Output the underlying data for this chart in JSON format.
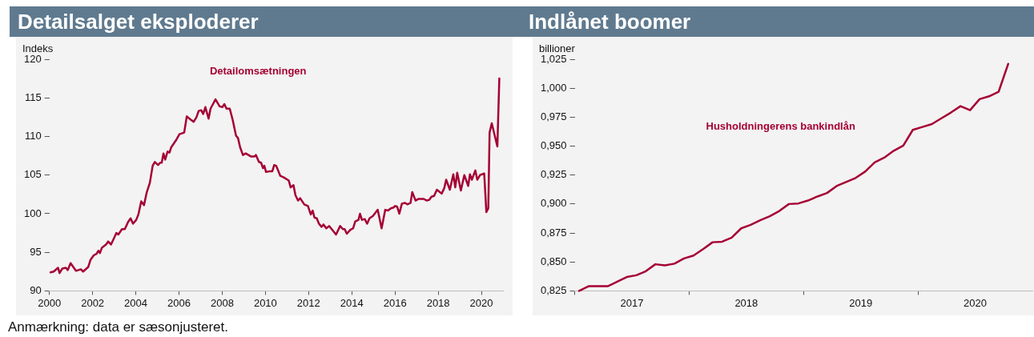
{
  "chart_data": [
    {
      "type": "line",
      "title": "Detailsalget eksploderer",
      "ylabel": "Indeks",
      "xlim": [
        2000,
        2021
      ],
      "xticks": [
        2000,
        2002,
        2004,
        2006,
        2008,
        2010,
        2012,
        2014,
        2016,
        2018,
        2020
      ],
      "ylim": [
        90,
        120
      ],
      "yticks": [
        90,
        95,
        100,
        105,
        110,
        115,
        120
      ],
      "grid": false,
      "legend": false,
      "marker": "none",
      "line_style": "solid",
      "annotations": [
        "Anmærkning: data er sæsonjusteret."
      ],
      "series": [
        {
          "name": "Detailomsætningen",
          "color": "#a50034",
          "x": [
            2000.05,
            2000.2,
            2000.4,
            2000.47,
            2000.6,
            2000.76,
            2000.85,
            2000.98,
            2001.23,
            2001.46,
            2001.56,
            2001.8,
            2001.9,
            2002.05,
            2002.18,
            2002.27,
            2002.34,
            2002.43,
            2002.62,
            2002.72,
            2002.85,
            2002.97,
            2003.1,
            2003.19,
            2003.36,
            2003.49,
            2003.64,
            2003.76,
            2003.87,
            2004.02,
            2004.12,
            2004.25,
            2004.38,
            2004.5,
            2004.65,
            2004.78,
            2004.88,
            2005.03,
            2005.13,
            2005.2,
            2005.28,
            2005.36,
            2005.47,
            2005.56,
            2005.64,
            2005.86,
            2006.02,
            2006.24,
            2006.36,
            2006.53,
            2006.68,
            2006.81,
            2006.91,
            2007.03,
            2007.12,
            2007.22,
            2007.37,
            2007.46,
            2007.69,
            2007.88,
            2008.01,
            2008.1,
            2008.2,
            2008.35,
            2008.49,
            2008.64,
            2008.73,
            2008.83,
            2008.96,
            2009.09,
            2009.34,
            2009.49,
            2009.56,
            2009.7,
            2009.8,
            2009.89,
            2009.95,
            2010.03,
            2010.22,
            2010.32,
            2010.41,
            2010.5,
            2010.69,
            2010.85,
            2011.08,
            2011.17,
            2011.3,
            2011.39,
            2011.51,
            2011.61,
            2011.8,
            2011.97,
            2012.1,
            2012.19,
            2012.27,
            2012.38,
            2012.48,
            2012.6,
            2012.69,
            2012.82,
            2012.95,
            2013.07,
            2013.27,
            2013.46,
            2013.59,
            2013.67,
            2013.77,
            2013.93,
            2014.06,
            2014.16,
            2014.31,
            2014.38,
            2014.47,
            2014.6,
            2014.71,
            2014.82,
            2014.98,
            2015.2,
            2015.38,
            2015.55,
            2015.68,
            2015.81,
            2015.93,
            2016.01,
            2016.1,
            2016.2,
            2016.32,
            2016.47,
            2016.57,
            2016.72,
            2016.8,
            2016.95,
            2017.08,
            2017.23,
            2017.33,
            2017.48,
            2017.59,
            2017.69,
            2017.81,
            2017.94,
            2018.16,
            2018.28,
            2018.37,
            2018.54,
            2018.7,
            2018.79,
            2018.88,
            2019.05,
            2019.21,
            2019.39,
            2019.47,
            2019.56,
            2019.72,
            2019.81,
            2019.94,
            2020.13,
            2020.23,
            2020.32,
            2020.38,
            2020.48,
            2020.74,
            2020.83
          ],
          "values": [
            92.4,
            92.5,
            93.0,
            92.3,
            92.9,
            93.0,
            92.7,
            93.6,
            92.6,
            92.8,
            92.5,
            93.1,
            94.0,
            94.6,
            94.8,
            95.2,
            94.9,
            95.6,
            96.0,
            96.4,
            96.0,
            96.7,
            97.5,
            97.3,
            98.0,
            98.0,
            98.9,
            99.4,
            98.7,
            99.2,
            99.9,
            101.6,
            101.1,
            102.7,
            104.0,
            106.2,
            106.7,
            106.3,
            106.6,
            106.6,
            107.8,
            107.0,
            108.05,
            107.9,
            108.6,
            109.5,
            110.3,
            110.5,
            112.6,
            112.2,
            111.9,
            112.5,
            113.3,
            113.4,
            112.9,
            113.8,
            112.3,
            113.6,
            114.8,
            113.9,
            113.8,
            114.2,
            113.6,
            113.6,
            112.1,
            110.1,
            109.8,
            108.6,
            107.6,
            107.8,
            107.4,
            107.4,
            107.6,
            106.7,
            106.6,
            105.9,
            106.2,
            105.4,
            105.5,
            105.5,
            106.3,
            106.2,
            104.9,
            104.7,
            104.3,
            103.4,
            103.7,
            102.4,
            101.7,
            102.0,
            101.2,
            101.0,
            99.9,
            100.4,
            99.5,
            99.4,
            98.7,
            98.3,
            98.6,
            98.1,
            98.4,
            98.0,
            97.3,
            98.4,
            98.0,
            98.0,
            97.4,
            97.9,
            98.1,
            99.0,
            99.2,
            100.0,
            99.2,
            99.3,
            98.7,
            99.4,
            99.7,
            100.5,
            98.1,
            100.5,
            100.4,
            100.7,
            100.8,
            101.0,
            100.9,
            100.0,
            101.3,
            101.4,
            101.2,
            101.4,
            102.8,
            101.7,
            101.9,
            101.9,
            101.9,
            101.7,
            101.8,
            102.2,
            102.3,
            103.1,
            102.6,
            103.3,
            104.4,
            103.1,
            105.1,
            103.4,
            105.3,
            103.0,
            105.0,
            103.6,
            105.1,
            104.4,
            105.6,
            104.4,
            105.0,
            105.2,
            100.2,
            100.7,
            110.5,
            111.7,
            108.7,
            117.5
          ]
        }
      ]
    },
    {
      "type": "line",
      "title": "Indlånet boomer",
      "ylabel": "billioner",
      "xlim": [
        "2017",
        "2021"
      ],
      "xticks": [
        {
          "value": "2017",
          "label": null
        },
        {
          "value": "2017-07",
          "label": "2017"
        },
        {
          "value": "2018",
          "label": null
        },
        {
          "value": "2018-07",
          "label": "2018"
        },
        {
          "value": "2019",
          "label": null
        },
        {
          "value": "2019-07",
          "label": "2019"
        },
        {
          "value": "2020",
          "label": null
        },
        {
          "value": "2020-07",
          "label": "2020"
        }
      ],
      "ylim": [
        0.825,
        1.025
      ],
      "yticks": [
        {
          "value": 0.825,
          "label": "0,825"
        },
        {
          "value": 0.85,
          "label": "0,850"
        },
        {
          "value": 0.875,
          "label": "0,875"
        },
        {
          "value": 0.9,
          "label": "0,900"
        },
        {
          "value": 0.925,
          "label": "0,925"
        },
        {
          "value": 0.95,
          "label": "0,950"
        },
        {
          "value": 0.975,
          "label": "0,975"
        },
        {
          "value": 1.0,
          "label": "1,000"
        },
        {
          "value": 1.025,
          "label": "1,025"
        }
      ],
      "grid": false,
      "legend": false,
      "marker": "none",
      "line_style": "solid",
      "series": [
        {
          "name": "Husholdningerens bankindlån",
          "color": "#a50034",
          "x": [
            "2017-01-15",
            "2017-02-15",
            "2017-03-15",
            "2017-04-15",
            "2017-05-15",
            "2017-06-15",
            "2017-07-15",
            "2017-08-15",
            "2017-09-15",
            "2017-10-15",
            "2017-11-15",
            "2017-12-15",
            "2018-01-15",
            "2018-02-15",
            "2018-03-15",
            "2018-04-15",
            "2018-05-15",
            "2018-06-15",
            "2018-07-15",
            "2018-08-15",
            "2018-09-15",
            "2018-10-15",
            "2018-11-15",
            "2018-12-15",
            "2019-01-15",
            "2019-02-15",
            "2019-03-15",
            "2019-04-15",
            "2019-05-15",
            "2019-06-15",
            "2019-07-15",
            "2019-08-15",
            "2019-09-15",
            "2019-10-15",
            "2019-11-15",
            "2019-12-15",
            "2020-01-15",
            "2020-02-15",
            "2020-03-15",
            "2020-04-15",
            "2020-05-15",
            "2020-06-15",
            "2020-07-15",
            "2020-08-15",
            "2020-09-15",
            "2020-10-15"
          ],
          "values": [
            0.825,
            0.829,
            0.829,
            0.829,
            0.833,
            0.837,
            0.8385,
            0.842,
            0.848,
            0.847,
            0.8485,
            0.853,
            0.8555,
            0.861,
            0.867,
            0.8675,
            0.871,
            0.879,
            0.882,
            0.886,
            0.8895,
            0.894,
            0.9,
            0.9005,
            0.903,
            0.9065,
            0.9095,
            0.9155,
            0.919,
            0.9225,
            0.928,
            0.936,
            0.94,
            0.946,
            0.9505,
            0.964,
            0.9665,
            0.969,
            0.974,
            0.979,
            0.9845,
            0.981,
            0.9905,
            0.993,
            0.997,
            1.021
          ]
        }
      ]
    }
  ]
}
